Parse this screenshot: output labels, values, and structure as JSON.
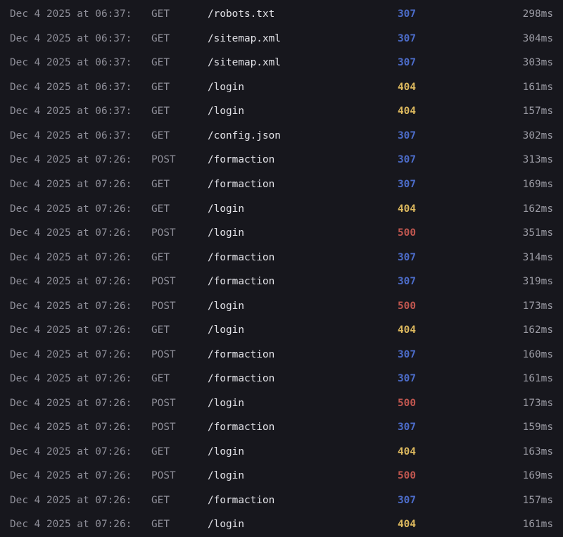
{
  "log_viewer": {
    "colors": {
      "background": "#17171d",
      "timestamp": "#8e8e98",
      "path": "#e2e2e7",
      "duration": "#9b9ba4",
      "status_307": "#4c6cc9",
      "status_404": "#dcb85e",
      "status_500": "#c0564f"
    },
    "rows": [
      {
        "timestamp": "Dec 4 2025 at 06:37:",
        "method": "GET",
        "path": "/robots.txt",
        "status": "307",
        "duration": "298ms"
      },
      {
        "timestamp": "Dec 4 2025 at 06:37:",
        "method": "GET",
        "path": "/sitemap.xml",
        "status": "307",
        "duration": "304ms"
      },
      {
        "timestamp": "Dec 4 2025 at 06:37:",
        "method": "GET",
        "path": "/sitemap.xml",
        "status": "307",
        "duration": "303ms"
      },
      {
        "timestamp": "Dec 4 2025 at 06:37:",
        "method": "GET",
        "path": "/login",
        "status": "404",
        "duration": "161ms"
      },
      {
        "timestamp": "Dec 4 2025 at 06:37:",
        "method": "GET",
        "path": "/login",
        "status": "404",
        "duration": "157ms"
      },
      {
        "timestamp": "Dec 4 2025 at 06:37:",
        "method": "GET",
        "path": "/config.json",
        "status": "307",
        "duration": "302ms"
      },
      {
        "timestamp": "Dec 4 2025 at 07:26:",
        "method": "POST",
        "path": "/formaction",
        "status": "307",
        "duration": "313ms"
      },
      {
        "timestamp": "Dec 4 2025 at 07:26:",
        "method": "GET",
        "path": "/formaction",
        "status": "307",
        "duration": "169ms"
      },
      {
        "timestamp": "Dec 4 2025 at 07:26:",
        "method": "GET",
        "path": "/login",
        "status": "404",
        "duration": "162ms"
      },
      {
        "timestamp": "Dec 4 2025 at 07:26:",
        "method": "POST",
        "path": "/login",
        "status": "500",
        "duration": "351ms"
      },
      {
        "timestamp": "Dec 4 2025 at 07:26:",
        "method": "GET",
        "path": "/formaction",
        "status": "307",
        "duration": "314ms"
      },
      {
        "timestamp": "Dec 4 2025 at 07:26:",
        "method": "POST",
        "path": "/formaction",
        "status": "307",
        "duration": "319ms"
      },
      {
        "timestamp": "Dec 4 2025 at 07:26:",
        "method": "POST",
        "path": "/login",
        "status": "500",
        "duration": "173ms"
      },
      {
        "timestamp": "Dec 4 2025 at 07:26:",
        "method": "GET",
        "path": "/login",
        "status": "404",
        "duration": "162ms"
      },
      {
        "timestamp": "Dec 4 2025 at 07:26:",
        "method": "POST",
        "path": "/formaction",
        "status": "307",
        "duration": "160ms"
      },
      {
        "timestamp": "Dec 4 2025 at 07:26:",
        "method": "GET",
        "path": "/formaction",
        "status": "307",
        "duration": "161ms"
      },
      {
        "timestamp": "Dec 4 2025 at 07:26:",
        "method": "POST",
        "path": "/login",
        "status": "500",
        "duration": "173ms"
      },
      {
        "timestamp": "Dec 4 2025 at 07:26:",
        "method": "POST",
        "path": "/formaction",
        "status": "307",
        "duration": "159ms"
      },
      {
        "timestamp": "Dec 4 2025 at 07:26:",
        "method": "GET",
        "path": "/login",
        "status": "404",
        "duration": "163ms"
      },
      {
        "timestamp": "Dec 4 2025 at 07:26:",
        "method": "POST",
        "path": "/login",
        "status": "500",
        "duration": "169ms"
      },
      {
        "timestamp": "Dec 4 2025 at 07:26:",
        "method": "GET",
        "path": "/formaction",
        "status": "307",
        "duration": "157ms"
      },
      {
        "timestamp": "Dec 4 2025 at 07:26:",
        "method": "GET",
        "path": "/login",
        "status": "404",
        "duration": "161ms"
      }
    ]
  }
}
